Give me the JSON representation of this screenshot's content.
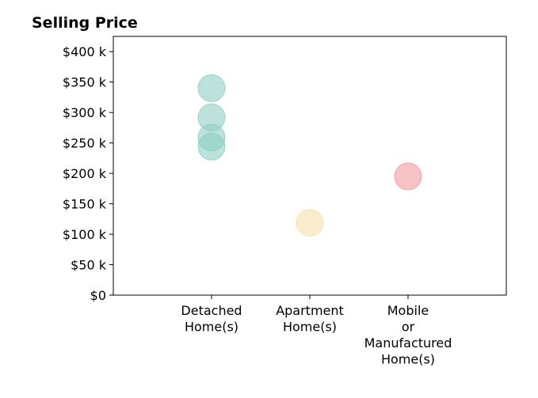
{
  "chart_data": {
    "type": "scatter",
    "title": "Selling Price",
    "xlabel": "",
    "ylabel": "",
    "categories": [
      [
        "Detached",
        "Home(s)"
      ],
      [
        "Apartment",
        "Home(s)"
      ],
      [
        "Mobile",
        "or",
        "Manufactured",
        "Home(s)"
      ]
    ],
    "xlim": [
      -1,
      3
    ],
    "ylim": [
      0,
      425000
    ],
    "yticks": [
      0,
      50000,
      100000,
      150000,
      200000,
      250000,
      300000,
      350000,
      400000
    ],
    "ytick_labels": [
      "$0",
      "$50 k",
      "$100 k",
      "$150 k",
      "$200 k",
      "$250 k",
      "$300 k",
      "$350 k",
      "$400 k"
    ],
    "grid": false,
    "points": [
      {
        "category_index": 0,
        "y": 340000,
        "color": "#8fcfc3"
      },
      {
        "category_index": 0,
        "y": 292000,
        "color": "#8fcfc3"
      },
      {
        "category_index": 0,
        "y": 259000,
        "color": "#8fcfc3"
      },
      {
        "category_index": 0,
        "y": 244000,
        "color": "#8fcfc3"
      },
      {
        "category_index": 1,
        "y": 119000,
        "color": "#f7e0ae"
      },
      {
        "category_index": 2,
        "y": 195000,
        "color": "#f29aa0"
      }
    ]
  }
}
